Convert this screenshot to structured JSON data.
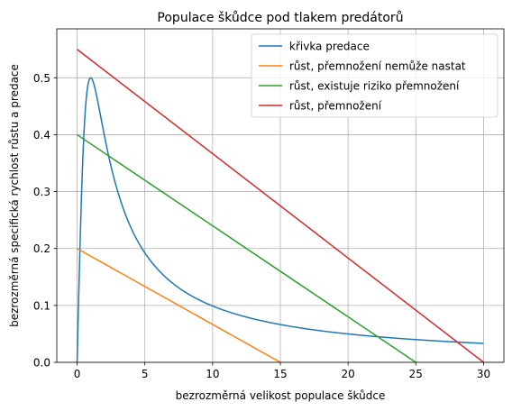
{
  "chart_data": {
    "type": "line",
    "title": "Populace škůdce pod tlakem predátorů",
    "xlabel": "bezrozměrná velikost populace škůdce",
    "ylabel": "bezrozměrná specifická rychlost růstu a predace",
    "xlim": [
      -1.5,
      31.5
    ],
    "ylim": [
      0,
      0.586
    ],
    "xticks": [
      0,
      5,
      10,
      15,
      20,
      25,
      30
    ],
    "yticks": [
      0.0,
      0.1,
      0.2,
      0.3,
      0.4,
      0.5
    ],
    "grid": true,
    "legend_position": "top-right",
    "series": [
      {
        "name": "křivka predace",
        "color": "#1f77b4",
        "function": "u/(1+u^2)",
        "x": [
          0,
          0.1,
          0.2,
          0.3,
          0.4,
          0.5,
          0.6,
          0.7,
          0.8,
          0.9,
          1.0,
          1.1,
          1.2,
          1.3,
          1.4,
          1.5,
          1.7,
          2.0,
          2.3,
          2.6,
          3.0,
          3.5,
          4.0,
          4.5,
          5.0,
          6.0,
          7.0,
          8.0,
          9.0,
          10.0,
          12.0,
          14.0,
          16.0,
          18.0,
          20.0,
          22.0,
          24.0,
          26.0,
          28.0,
          30.0
        ],
        "y": [
          0,
          0.099,
          0.192,
          0.275,
          0.345,
          0.4,
          0.441,
          0.47,
          0.488,
          0.497,
          0.5,
          0.498,
          0.492,
          0.483,
          0.473,
          0.462,
          0.44,
          0.4,
          0.363,
          0.335,
          0.3,
          0.264,
          0.235,
          0.212,
          0.192,
          0.162,
          0.14,
          0.123,
          0.11,
          0.099,
          0.083,
          0.071,
          0.062,
          0.055,
          0.05,
          0.045,
          0.042,
          0.038,
          0.036,
          0.033
        ]
      },
      {
        "name": "růst, přemnožení nemůže nastat",
        "color": "#ff7f0e",
        "x": [
          0,
          15
        ],
        "y": [
          0.2,
          0
        ]
      },
      {
        "name": "růst, existuje riziko přemnožení",
        "color": "#2ca02c",
        "x": [
          0,
          25
        ],
        "y": [
          0.4,
          0
        ]
      },
      {
        "name": "růst, přemnožení",
        "color": "#d62728",
        "x": [
          0,
          30
        ],
        "y": [
          0.55,
          0
        ]
      }
    ]
  }
}
